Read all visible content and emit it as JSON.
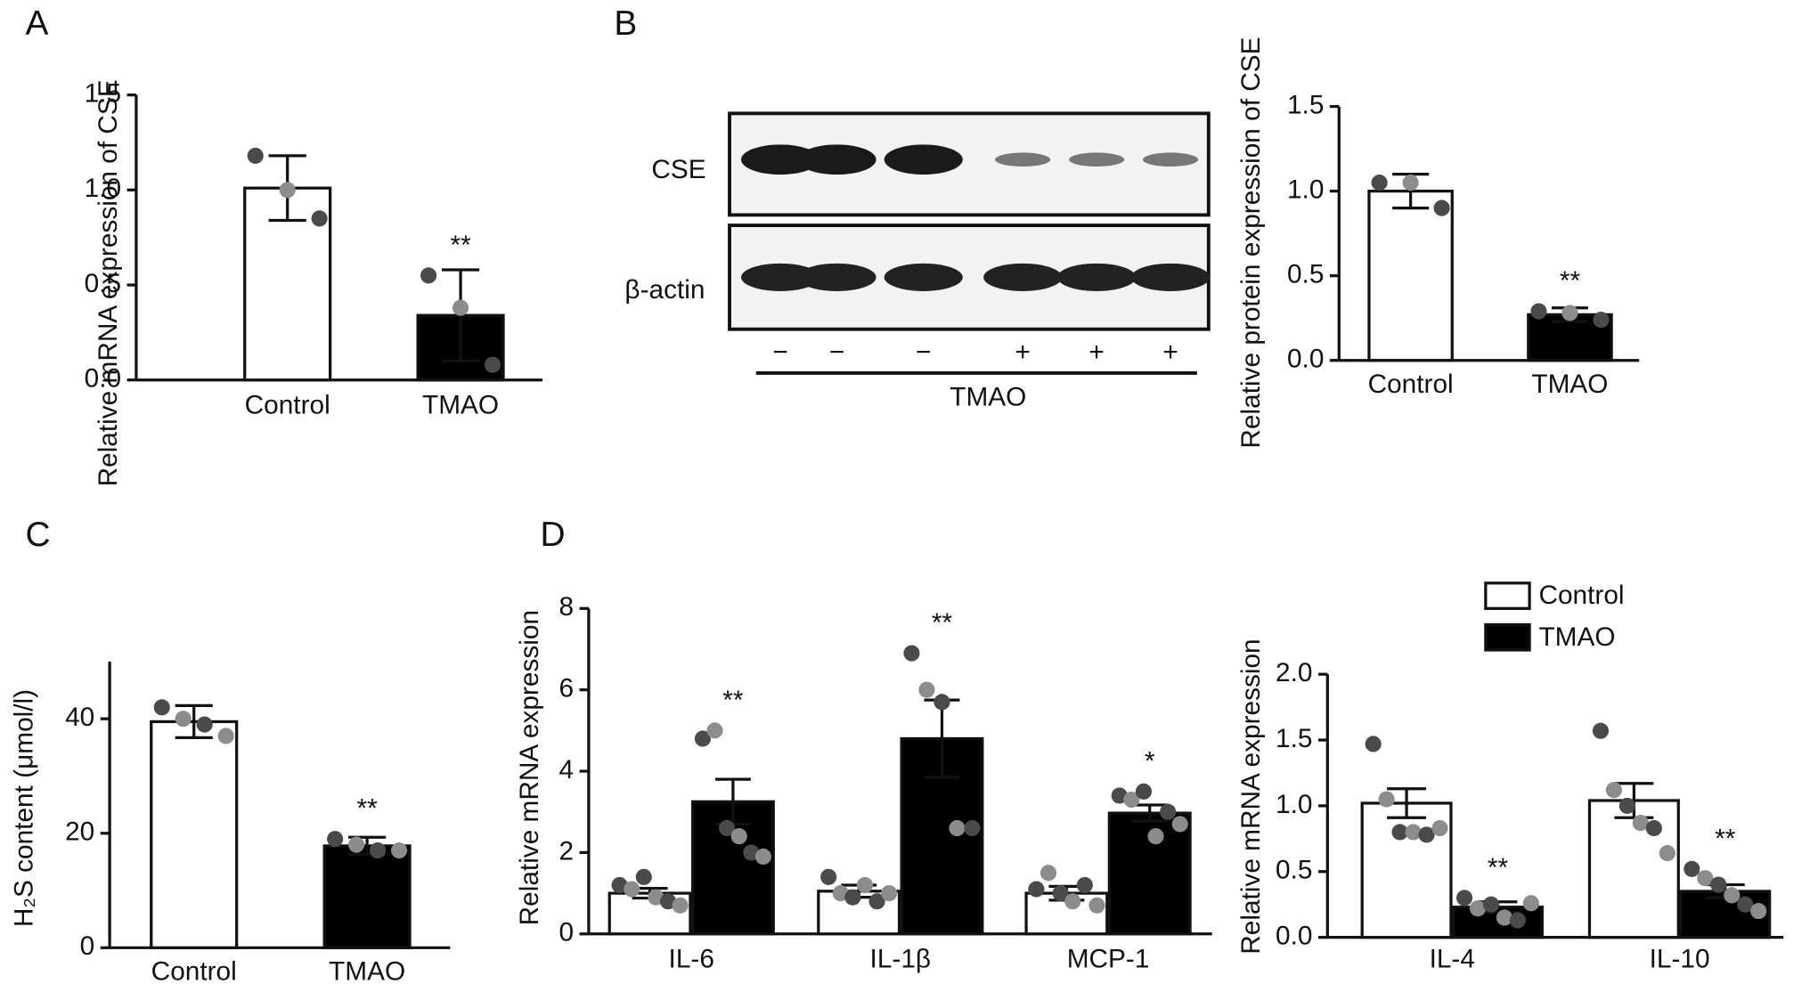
{
  "blot": {
    "rows": [
      "CSE",
      "β-actin"
    ],
    "lanes": [
      "−",
      "−",
      "−",
      "+",
      "+",
      "+"
    ],
    "label": "TMAO"
  },
  "chart_data": [
    {
      "type": "bar",
      "panel": "A",
      "ylabel": "Relative mRNA expression of CSE",
      "categories": [
        "Control",
        "TMAO"
      ],
      "values": [
        1.01,
        0.34
      ],
      "errors": [
        0.17,
        0.24
      ],
      "points": [
        [
          1.18,
          1.0,
          0.85
        ],
        [
          0.55,
          0.38,
          0.08
        ]
      ],
      "colors": [
        "#ffffff",
        "#000000"
      ],
      "point_colors": [
        "#4a4a4a",
        "#8c8c8c"
      ],
      "annotations": [
        null,
        "**"
      ],
      "ylim": [
        0,
        1.5
      ],
      "yticks": [
        {
          "value": 0,
          "label": "0.0"
        },
        {
          "value": 0.5,
          "label": "0.5"
        },
        {
          "value": 1,
          "label": "1.0"
        },
        {
          "value": 1.5,
          "label": "1.5"
        }
      ]
    },
    {
      "type": "bar",
      "panel": "B",
      "ylabel": "Relative protein expression of CSE",
      "categories": [
        "Control",
        "TMAO"
      ],
      "values": [
        1.0,
        0.27
      ],
      "errors": [
        0.1,
        0.04
      ],
      "points": [
        [
          1.05,
          1.05,
          0.9
        ],
        [
          0.29,
          0.28,
          0.24
        ]
      ],
      "colors": [
        "#ffffff",
        "#000000"
      ],
      "point_colors": [
        "#4a4a4a",
        "#8c8c8c"
      ],
      "annotations": [
        null,
        "**"
      ],
      "ylim": [
        0,
        1.5
      ],
      "yticks": [
        {
          "value": 0,
          "label": "0.0"
        },
        {
          "value": 0.5,
          "label": "0.5"
        },
        {
          "value": 1,
          "label": "1.0"
        },
        {
          "value": 1.5,
          "label": "1.5"
        }
      ]
    },
    {
      "type": "bar",
      "panel": "C",
      "ylabel": "H₂S content (μmol/l)",
      "categories": [
        "Control",
        "TMAO"
      ],
      "values": [
        39.5,
        17.8
      ],
      "errors": [
        2.8,
        1.5
      ],
      "points": [
        [
          42,
          40,
          39,
          37
        ],
        [
          19,
          18,
          17,
          17
        ]
      ],
      "colors": [
        "#ffffff",
        "#000000"
      ],
      "point_colors": [
        "#4a4a4a",
        "#8c8c8c"
      ],
      "annotations": [
        null,
        "**"
      ],
      "ylim": [
        0,
        50
      ],
      "yticks": [
        0,
        20,
        40
      ]
    },
    {
      "type": "grouped_bar",
      "panel": "D",
      "ylabel": "Relative mRNA expression",
      "categories": [
        "IL-6",
        "IL-1β",
        "MCP-1"
      ],
      "point_colors": [
        "#4a4a4a",
        "#8c8c8c"
      ],
      "series": [
        {
          "name": "Control",
          "color": "#ffffff",
          "values": [
            1.0,
            1.05,
            1.0
          ],
          "errors": [
            0.12,
            0.15,
            0.17
          ],
          "points": [
            [
              1.2,
              1.1,
              1.4,
              0.9,
              0.8,
              0.7
            ],
            [
              1.4,
              1.0,
              0.9,
              1.2,
              0.8,
              1.0
            ],
            [
              1.1,
              1.5,
              1.0,
              0.8,
              1.2,
              0.7
            ]
          ]
        },
        {
          "name": "TMAO",
          "color": "#000000",
          "values": [
            3.25,
            4.8,
            2.97
          ],
          "errors": [
            0.55,
            0.95,
            0.2
          ],
          "points": [
            [
              4.8,
              5.0,
              2.6,
              2.4,
              2.0,
              1.9
            ],
            [
              6.9,
              6.0,
              5.7,
              2.6,
              2.6
            ],
            [
              3.4,
              3.3,
              3.5,
              2.4,
              3.0,
              2.7
            ]
          ],
          "annotations": [
            "**",
            "**",
            "*"
          ]
        }
      ],
      "ylim": [
        0,
        8
      ],
      "yticks": [
        0,
        2,
        4,
        6,
        8
      ]
    },
    {
      "type": "grouped_bar",
      "ylabel": "Relative mRNA expression",
      "legend": true,
      "categories": [
        "IL-4",
        "IL-10"
      ],
      "point_colors": [
        "#4a4a4a",
        "#8c8c8c"
      ],
      "series": [
        {
          "name": "Control",
          "color": "#ffffff",
          "values": [
            1.02,
            1.04
          ],
          "errors": [
            0.11,
            0.13
          ],
          "points": [
            [
              1.47,
              1.05,
              0.8,
              0.8,
              0.78,
              0.83
            ],
            [
              1.57,
              1.12,
              1.0,
              0.87,
              0.83,
              0.64
            ]
          ]
        },
        {
          "name": "TMAO",
          "color": "#000000",
          "values": [
            0.23,
            0.35
          ],
          "errors": [
            0.04,
            0.05
          ],
          "points": [
            [
              0.3,
              0.22,
              0.25,
              0.15,
              0.13,
              0.26
            ],
            [
              0.52,
              0.45,
              0.4,
              0.32,
              0.25,
              0.2
            ]
          ],
          "annotations": [
            "**",
            "**"
          ]
        }
      ],
      "ylim": [
        0,
        2
      ],
      "yticks": [
        {
          "value": 0,
          "label": "0.0"
        },
        {
          "value": 0.5,
          "label": "0.5"
        },
        {
          "value": 1,
          "label": "1.0"
        },
        {
          "value": 1.5,
          "label": "1.5"
        },
        {
          "value": 2,
          "label": "2.0"
        }
      ]
    }
  ]
}
